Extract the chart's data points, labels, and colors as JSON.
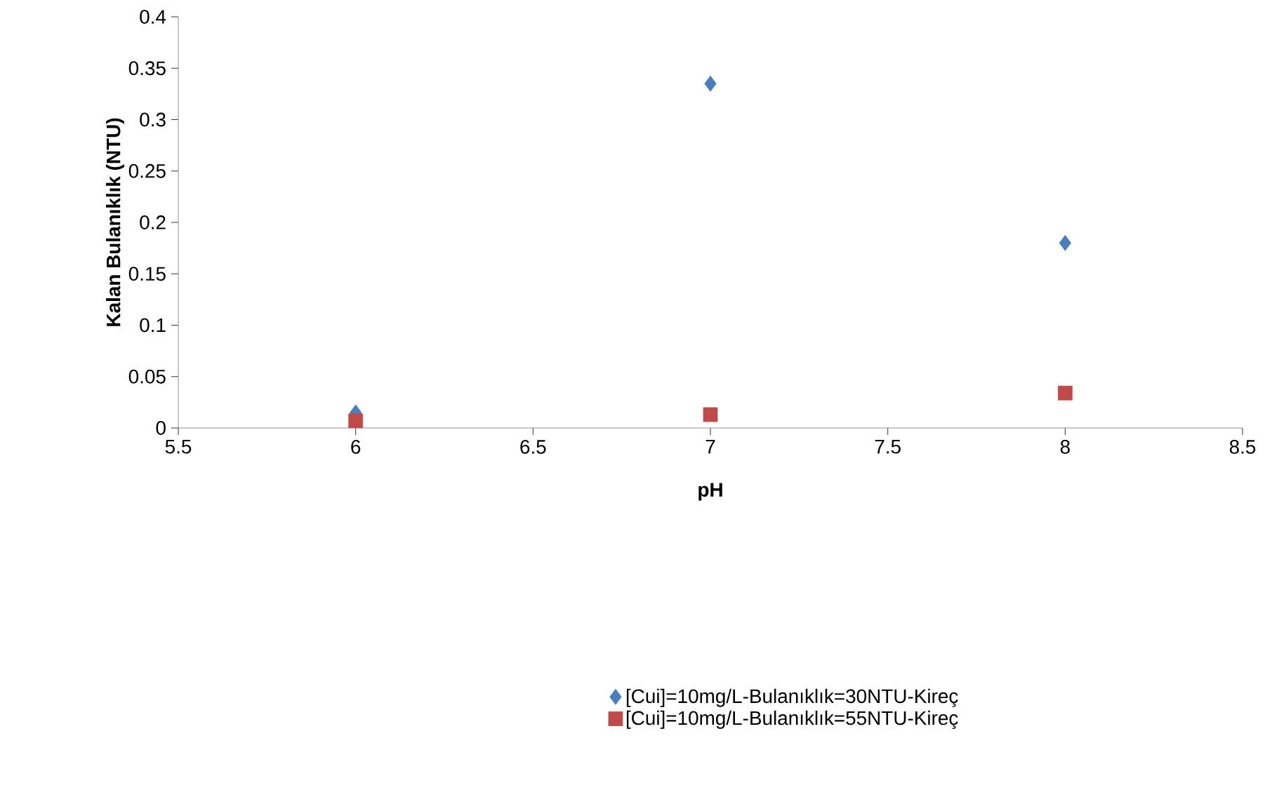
{
  "chart_data": {
    "type": "scatter",
    "xlabel": "pH",
    "ylabel": "Kalan Bulanıklık (NTU)",
    "x": [
      6,
      7,
      8
    ],
    "series": [
      {
        "name": "[Cui]=10mg/L-Bulanıklık=30NTU-Kireç",
        "color": "#4a7ebb",
        "marker": "diamond",
        "values": [
          0.015,
          0.335,
          0.18
        ]
      },
      {
        "name": "[Cui]=10mg/L-Bulanıklık=55NTU-Kireç",
        "color": "#be4b48",
        "marker": "square",
        "values": [
          0.007,
          0.013,
          0.034
        ]
      }
    ],
    "xlim": [
      5.5,
      8.5
    ],
    "ylim": [
      0,
      0.4
    ],
    "xticks": [
      5.5,
      6,
      6.5,
      7,
      7.5,
      8,
      8.5
    ],
    "yticks": [
      0,
      0.05,
      0.1,
      0.15,
      0.2,
      0.25,
      0.3,
      0.35,
      0.4
    ],
    "grid": false,
    "legend": "bottom"
  }
}
